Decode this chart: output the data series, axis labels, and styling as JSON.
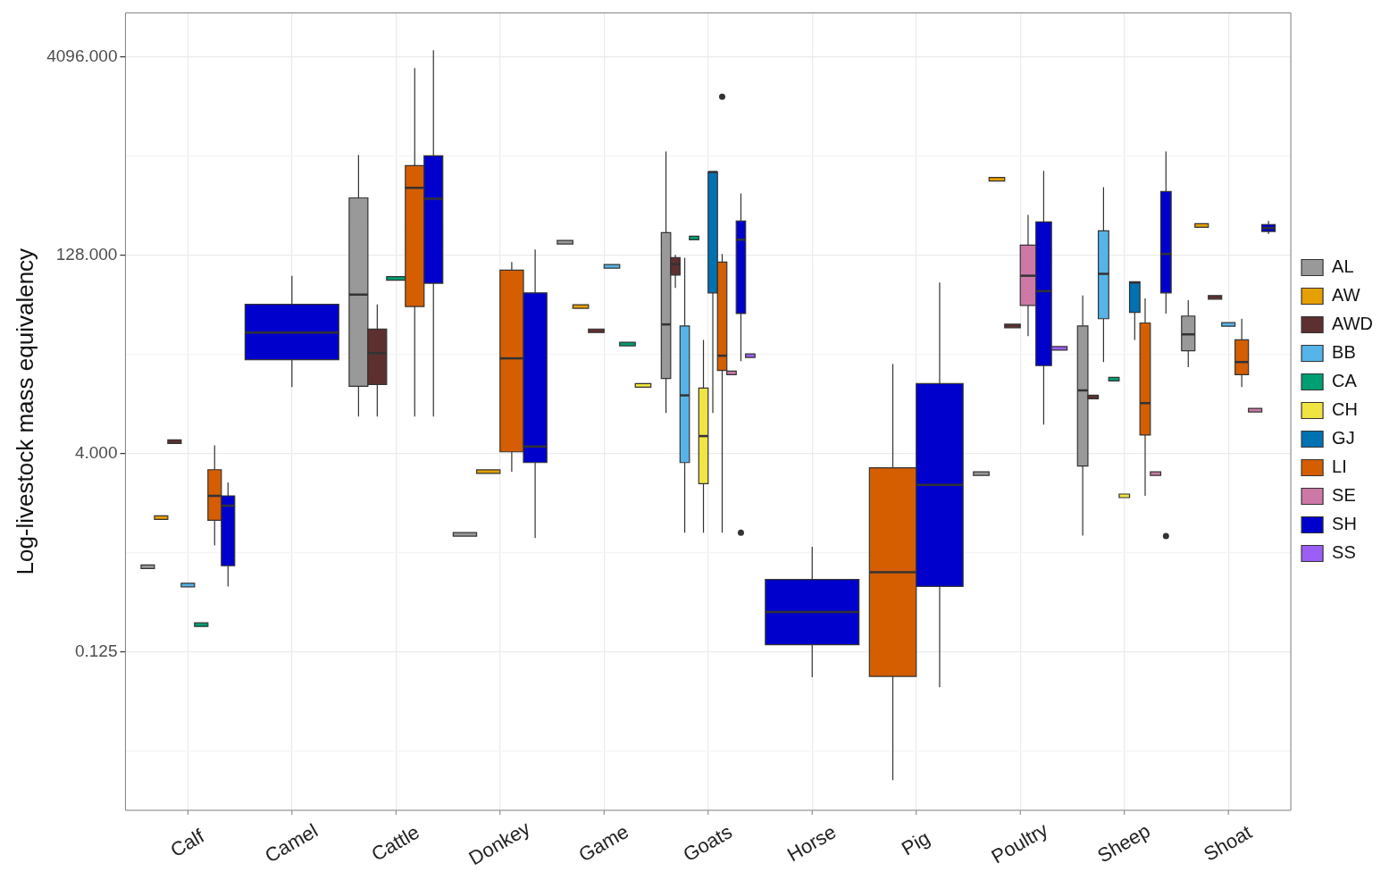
{
  "chart_data": {
    "type": "box",
    "ylabel": "Log-livestock mass equivalency",
    "log": true,
    "grid": true,
    "legend": "right",
    "ylim": [
      0.0078,
      8800
    ],
    "yticks": [
      {
        "value": 0.0221,
        "label": null
      },
      {
        "value": 0.125,
        "label": "0.125"
      },
      {
        "value": 0.707,
        "label": null
      },
      {
        "value": 4,
        "label": "4.000"
      },
      {
        "value": 22.6,
        "label": null
      },
      {
        "value": 128,
        "label": "128.000"
      },
      {
        "value": 724,
        "label": null
      },
      {
        "value": 4096,
        "label": "4096.000"
      }
    ],
    "categories": [
      "Calf",
      "Camel",
      "Cattle",
      "Donkey",
      "Game",
      "Goats",
      "Horse",
      "Pig",
      "Poultry",
      "Sheep",
      "Shoat"
    ],
    "series": [
      {
        "name": "AL",
        "color": "#999999",
        "boxes": [
          {
            "low": 0.55,
            "q1": 0.55,
            "median": 0.55,
            "q3": 0.55,
            "high": 0.55
          },
          null,
          {
            "low": 7.6,
            "q1": 12.9,
            "median": 64,
            "q3": 347,
            "high": 734
          },
          {
            "low": 0.97,
            "q1": 0.97,
            "median": 0.97,
            "q3": 0.97,
            "high": 0.97
          },
          {
            "low": 160,
            "q1": 160,
            "median": 160,
            "q3": 160,
            "high": 160
          },
          {
            "low": 8.1,
            "q1": 14.8,
            "median": 38,
            "q3": 189,
            "high": 780
          },
          null,
          null,
          {
            "low": 2.8,
            "q1": 2.8,
            "median": 2.8,
            "q3": 2.8,
            "high": 2.8
          },
          {
            "low": 0.95,
            "q1": 3.2,
            "median": 12,
            "q3": 37,
            "high": 63
          },
          {
            "low": 18,
            "q1": 24,
            "median": 32,
            "q3": 44,
            "high": 58
          }
        ]
      },
      {
        "name": "AW",
        "color": "#e69f00",
        "boxes": [
          {
            "low": 1.3,
            "q1": 1.3,
            "median": 1.3,
            "q3": 1.3,
            "high": 1.3
          },
          null,
          null,
          {
            "low": 2.9,
            "q1": 2.9,
            "median": 2.9,
            "q3": 2.9,
            "high": 2.9
          },
          {
            "low": 52,
            "q1": 52,
            "median": 52,
            "q3": 52,
            "high": 52
          },
          null,
          null,
          null,
          {
            "low": 481,
            "q1": 481,
            "median": 481,
            "q3": 481,
            "high": 481
          },
          null,
          {
            "low": 214,
            "q1": 214,
            "median": 214,
            "q3": 214,
            "high": 214
          }
        ]
      },
      {
        "name": "AWD",
        "color": "#5e2f2f",
        "boxes": [
          {
            "low": 4.9,
            "q1": 4.9,
            "median": 4.9,
            "q3": 4.9,
            "high": 4.9
          },
          null,
          {
            "low": 7.6,
            "q1": 13.3,
            "median": 23,
            "q3": 35,
            "high": 54
          },
          null,
          {
            "low": 34,
            "q1": 34,
            "median": 34,
            "q3": 34,
            "high": 34
          },
          {
            "low": 72,
            "q1": 90,
            "median": 109,
            "q3": 122,
            "high": 128
          },
          null,
          null,
          {
            "low": 37,
            "q1": 37,
            "median": 37,
            "q3": 37,
            "high": 37
          },
          {
            "low": 10.7,
            "q1": 10.7,
            "median": 10.7,
            "q3": 10.7,
            "high": 10.7
          },
          {
            "low": 61,
            "q1": 61,
            "median": 61,
            "q3": 61,
            "high": 61
          }
        ]
      },
      {
        "name": "BB",
        "color": "#56b4e9",
        "boxes": [
          {
            "low": 0.4,
            "q1": 0.4,
            "median": 0.4,
            "q3": 0.4,
            "high": 0.4
          },
          null,
          null,
          null,
          {
            "low": 105,
            "q1": 105,
            "median": 105,
            "q3": 105,
            "high": 105
          },
          {
            "low": 1.0,
            "q1": 3.4,
            "median": 11,
            "q3": 37,
            "high": 122
          },
          null,
          null,
          null,
          {
            "low": 19.7,
            "q1": 42,
            "median": 92,
            "q3": 195,
            "high": 419
          },
          {
            "low": 38,
            "q1": 38,
            "median": 38,
            "q3": 38,
            "high": 38
          }
        ]
      },
      {
        "name": "CA",
        "color": "#009e73",
        "boxes": [
          {
            "low": 0.2,
            "q1": 0.2,
            "median": 0.2,
            "q3": 0.2,
            "high": 0.2
          },
          null,
          {
            "low": 85,
            "q1": 85,
            "median": 85,
            "q3": 85,
            "high": 85
          },
          null,
          {
            "low": 27,
            "q1": 27,
            "median": 27,
            "q3": 27,
            "high": 27
          },
          {
            "low": 172,
            "q1": 172,
            "median": 172,
            "q3": 172,
            "high": 172
          },
          null,
          null,
          null,
          {
            "low": 14.6,
            "q1": 14.6,
            "median": 14.6,
            "q3": 14.6,
            "high": 14.6
          },
          null
        ]
      },
      {
        "name": "CH",
        "color": "#f0e442",
        "boxes": [
          null,
          null,
          null,
          null,
          {
            "low": 13.1,
            "q1": 13.1,
            "median": 13.1,
            "q3": 13.1,
            "high": 13.1
          },
          {
            "low": 1.0,
            "q1": 2.35,
            "median": 5.4,
            "q3": 12.5,
            "high": 29
          },
          null,
          null,
          null,
          {
            "low": 1.9,
            "q1": 1.9,
            "median": 1.9,
            "q3": 1.9,
            "high": 1.9
          },
          null
        ]
      },
      {
        "name": "GJ",
        "color": "#0072b2",
        "boxes": [
          null,
          null,
          null,
          null,
          null,
          {
            "low": 8.1,
            "q1": 66,
            "median": 545,
            "q3": 545,
            "high": 545
          },
          null,
          null,
          null,
          {
            "low": 29,
            "q1": 47,
            "median": 79,
            "q3": 80,
            "high": 80
          },
          null
        ]
      },
      {
        "name": "LI",
        "color": "#d55e00",
        "boxes": [
          {
            "low": 0.8,
            "q1": 1.24,
            "median": 1.9,
            "q3": 3.0,
            "high": 4.6
          },
          null,
          {
            "low": 7.6,
            "q1": 52,
            "median": 413,
            "q3": 609,
            "high": 3350
          },
          {
            "low": 2.9,
            "q1": 4.1,
            "median": 21,
            "q3": 98,
            "high": 113
          },
          null,
          {
            "low": 1.0,
            "q1": 17,
            "median": 22,
            "q3": 113,
            "high": 130,
            "outliers": [
              2030
            ]
          },
          null,
          {
            "low": 0.0132,
            "q1": 0.081,
            "median": 0.5,
            "q3": 3.1,
            "high": 19
          },
          null,
          {
            "low": 1.9,
            "q1": 5.5,
            "median": 9.6,
            "q3": 39,
            "high": 60
          },
          {
            "low": 12.7,
            "q1": 15.8,
            "median": 19.7,
            "q3": 29,
            "high": 42
          }
        ]
      },
      {
        "name": "SE",
        "color": "#cc79a7",
        "boxes": [
          null,
          null,
          null,
          null,
          null,
          {
            "low": 16.3,
            "q1": 16.3,
            "median": 16.3,
            "q3": 16.3,
            "high": 16.3
          },
          null,
          null,
          {
            "low": 31,
            "q1": 53,
            "median": 89,
            "q3": 152,
            "high": 258
          },
          {
            "low": 2.8,
            "q1": 2.8,
            "median": 2.8,
            "q3": 2.8,
            "high": 2.8
          },
          {
            "low": 8.5,
            "q1": 8.5,
            "median": 8.5,
            "q3": 8.5,
            "high": 8.5
          }
        ]
      },
      {
        "name": "SH",
        "color": "#0000cd",
        "boxes": [
          {
            "low": 0.39,
            "q1": 0.56,
            "median": 1.6,
            "q3": 1.9,
            "high": 2.4
          },
          {
            "low": 12.7,
            "q1": 20.5,
            "median": 33,
            "q3": 54,
            "high": 89
          },
          {
            "low": 7.6,
            "q1": 78,
            "median": 342,
            "q3": 724,
            "high": 4570
          },
          {
            "low": 0.91,
            "q1": 3.4,
            "median": 4.5,
            "q3": 66,
            "high": 141
          },
          null,
          {
            "low": 20,
            "q1": 46,
            "median": 167,
            "q3": 232,
            "high": 375,
            "outliers": [
              1.0
            ]
          },
          {
            "low": 0.08,
            "q1": 0.141,
            "median": 0.25,
            "q3": 0.44,
            "high": 0.78
          },
          {
            "low": 0.067,
            "q1": 0.39,
            "median": 2.3,
            "q3": 13.5,
            "high": 79
          },
          {
            "low": 6.6,
            "q1": 18.5,
            "median": 68,
            "q3": 228,
            "high": 556
          },
          {
            "low": 46,
            "q1": 66,
            "median": 130,
            "q3": 388,
            "high": 780,
            "outliers": [
              0.94
            ]
          },
          {
            "low": 184,
            "q1": 193,
            "median": 205,
            "q3": 218,
            "high": 232
          }
        ]
      },
      {
        "name": "SS",
        "color": "#9b5ff5",
        "boxes": [
          null,
          null,
          null,
          null,
          null,
          {
            "low": 22,
            "q1": 22,
            "median": 22,
            "q3": 22,
            "high": 22
          },
          null,
          null,
          {
            "low": 25,
            "q1": 25,
            "median": 25,
            "q3": 25,
            "high": 25
          },
          null,
          null
        ]
      }
    ]
  }
}
